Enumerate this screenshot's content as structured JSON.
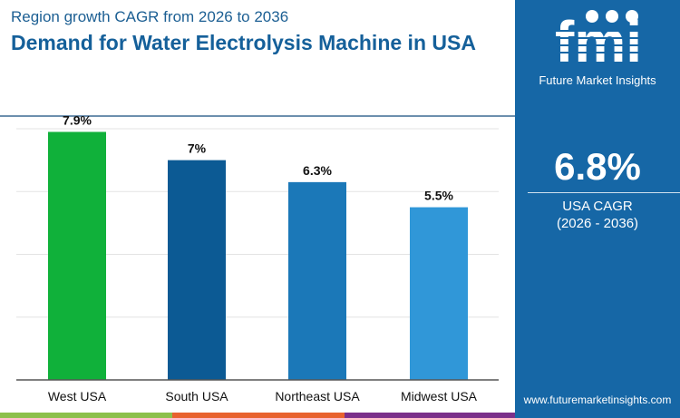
{
  "header": {
    "subtitle": "Region growth CAGR from 2026 to 2036",
    "title": "Demand for Water Electrolysis Machine in USA"
  },
  "sidebar": {
    "brand": "Future Market Insights",
    "logo_text": "fmi",
    "cagr_value": "6.8%",
    "cagr_label": "USA CAGR",
    "cagr_period": "(2026 - 2036)",
    "url": "www.futuremarketinsights.com",
    "bg_color": "#1667a6"
  },
  "chart_data": {
    "type": "bar",
    "categories": [
      "West USA",
      "South USA",
      "Northeast USA",
      "Midwest USA"
    ],
    "values": [
      7.9,
      7.0,
      6.3,
      5.5
    ],
    "data_labels": [
      "7.9%",
      "7%",
      "6.3%",
      "5.5%"
    ],
    "colors": [
      "#10b13a",
      "#0c5a94",
      "#1b78b8",
      "#3097d8"
    ],
    "ylim": [
      0,
      8
    ],
    "grid": true,
    "title": "",
    "xlabel": "",
    "ylabel": ""
  }
}
